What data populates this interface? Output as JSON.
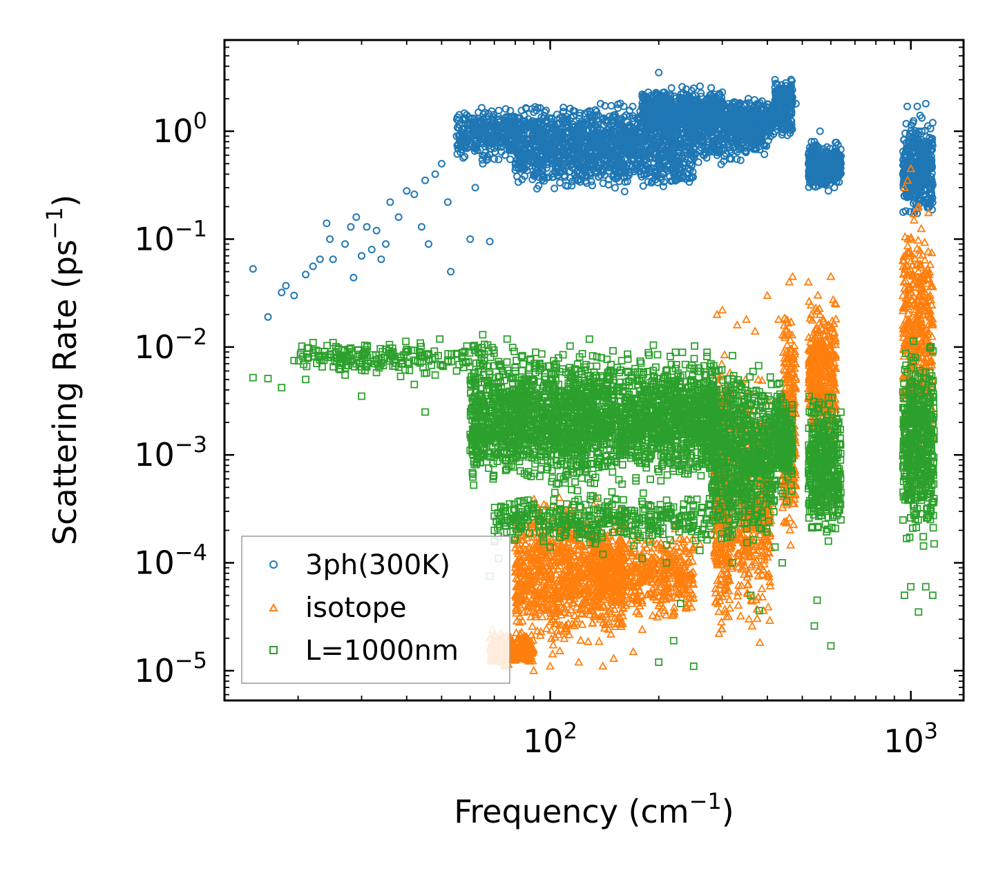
{
  "chart_data": {
    "type": "scatter",
    "xscale": "log",
    "yscale": "log",
    "xlim": [
      12.5,
      1400
    ],
    "ylim": [
      5.3e-06,
      7.0
    ],
    "xlabel": {
      "base": "Frequency (cm",
      "exponent": "−1",
      "close": ")"
    },
    "ylabel": {
      "base": "Scattering Rate (ps",
      "exponent": "−1",
      "close": ")"
    },
    "x_ticks": [
      {
        "value": 100,
        "base": "10",
        "exp": "2"
      },
      {
        "value": 1000,
        "base": "10",
        "exp": "3"
      }
    ],
    "y_ticks": [
      {
        "value": 1,
        "base": "10",
        "exp": "0"
      },
      {
        "value": 0.1,
        "base": "10",
        "exp": "−1"
      },
      {
        "value": 0.01,
        "base": "10",
        "exp": "−2"
      },
      {
        "value": 0.001,
        "base": "10",
        "exp": "−3"
      },
      {
        "value": 0.0001,
        "base": "10",
        "exp": "−4"
      },
      {
        "value": 1e-05,
        "base": "10",
        "exp": "−5"
      }
    ],
    "legend_position": "lower-left",
    "series": [
      {
        "name": "3ph(300K)",
        "marker": "circle",
        "color": "#1f77b4",
        "points": [
          [
            15,
            0.053
          ],
          [
            16.5,
            0.019
          ],
          [
            18,
            0.032
          ],
          [
            18.5,
            0.037
          ],
          [
            19.5,
            0.03
          ],
          [
            21,
            0.047
          ],
          [
            22,
            0.056
          ],
          [
            23,
            0.065
          ],
          [
            24,
            0.14
          ],
          [
            24.5,
            0.1
          ],
          [
            25,
            0.065
          ],
          [
            27,
            0.09
          ],
          [
            28,
            0.13
          ],
          [
            28.5,
            0.044
          ],
          [
            29,
            0.16
          ],
          [
            30,
            0.07
          ],
          [
            31,
            0.13
          ],
          [
            32,
            0.08
          ],
          [
            33,
            0.12
          ],
          [
            34,
            0.065
          ],
          [
            35,
            0.09
          ],
          [
            36,
            0.22
          ],
          [
            38,
            0.16
          ],
          [
            40,
            0.28
          ],
          [
            42,
            0.26
          ],
          [
            44,
            0.13
          ],
          [
            45,
            0.35
          ],
          [
            46,
            0.09
          ],
          [
            48,
            0.4
          ],
          [
            50,
            0.5
          ],
          [
            52,
            0.22
          ],
          [
            53,
            0.05
          ],
          [
            55,
            0.9
          ],
          [
            58,
            0.7
          ],
          [
            60,
            0.1
          ],
          [
            62,
            0.3
          ],
          [
            65,
            0.5
          ],
          [
            68,
            0.095
          ],
          [
            70,
            0.8
          ],
          [
            75,
            0.6
          ],
          [
            80,
            1.2
          ],
          [
            85,
            0.45
          ],
          [
            90,
            1.5
          ],
          [
            95,
            0.9
          ],
          [
            100,
            0.7
          ],
          [
            110,
            1.1
          ],
          [
            120,
            0.5
          ],
          [
            130,
            0.9
          ],
          [
            140,
            1.3
          ],
          [
            150,
            0.4
          ],
          [
            160,
            1.7
          ],
          [
            170,
            1.0
          ],
          [
            180,
            2.2
          ],
          [
            190,
            0.8
          ],
          [
            200,
            3.5
          ],
          [
            210,
            1.4
          ],
          [
            220,
            0.9
          ],
          [
            230,
            2.0
          ],
          [
            250,
            2.5
          ],
          [
            270,
            1.5
          ],
          [
            300,
            2.3
          ],
          [
            320,
            1.8
          ],
          [
            350,
            1.3
          ],
          [
            380,
            0.9
          ],
          [
            400,
            1.5
          ],
          [
            420,
            3.0
          ],
          [
            440,
            2.2
          ],
          [
            460,
            1.5
          ],
          [
            480,
            1.8
          ],
          [
            520,
            0.5
          ],
          [
            540,
            0.8
          ],
          [
            560,
            1.0
          ],
          [
            580,
            0.35
          ],
          [
            600,
            0.6
          ],
          [
            620,
            0.5
          ],
          [
            640,
            0.5
          ],
          [
            950,
            0.4
          ],
          [
            980,
            0.25
          ],
          [
            1000,
            0.6
          ],
          [
            1050,
            1.0
          ],
          [
            1100,
            1.8
          ],
          [
            1150,
            1.2
          ]
        ],
        "bands": [
          {
            "x": [
              55,
              400
            ],
            "ylog": [
              -0.35,
              0.3
            ],
            "count": 1500
          },
          {
            "x": [
              80,
              250
            ],
            "ylog": [
              -0.6,
              0.05
            ],
            "count": 700
          },
          {
            "x": [
              180,
              300
            ],
            "ylog": [
              -0.05,
              0.45
            ],
            "count": 600
          },
          {
            "x": [
              280,
              470
            ],
            "ylog": [
              -0.1,
              0.35
            ],
            "count": 400
          },
          {
            "x": [
              420,
              470
            ],
            "ylog": [
              0.15,
              0.5
            ],
            "count": 150
          },
          {
            "x": [
              520,
              640
            ],
            "ylog": [
              -0.6,
              -0.05
            ],
            "count": 400
          },
          {
            "x": [
              950,
              1150
            ],
            "ylog": [
              -0.9,
              0.25
            ],
            "count": 400
          }
        ]
      },
      {
        "name": "isotope",
        "marker": "triangle",
        "color": "#ff7f0e",
        "points": [
          [
            72,
            1.6e-05
          ],
          [
            75,
            1.1e-05
          ],
          [
            90,
            1e-05
          ],
          [
            100,
            1.1e-05
          ],
          [
            120,
            1.2e-05
          ],
          [
            140,
            1.1e-05
          ],
          [
            150,
            1.3e-05
          ],
          [
            170,
            1.5e-05
          ],
          [
            180,
            2.4e-05
          ],
          [
            200,
            4e-05
          ],
          [
            220,
            3.5e-05
          ],
          [
            240,
            0.0001
          ],
          [
            260,
            0.00015
          ],
          [
            290,
            0.02
          ],
          [
            300,
            0.022
          ],
          [
            330,
            0.016
          ],
          [
            350,
            0.018
          ],
          [
            370,
            0.014
          ],
          [
            400,
            0.03
          ],
          [
            430,
            0.018
          ],
          [
            460,
            0.04
          ],
          [
            470,
            0.045
          ],
          [
            480,
            0.005
          ],
          [
            520,
            0.04
          ],
          [
            560,
            0.02
          ],
          [
            600,
            0.045
          ],
          [
            620,
            0.025
          ],
          [
            960,
            0.3
          ],
          [
            980,
            0.35
          ],
          [
            1000,
            0.45
          ],
          [
            1020,
            0.15
          ],
          [
            1050,
            0.2
          ],
          [
            1080,
            0.035
          ],
          [
            1100,
            0.05
          ],
          [
            1140,
            0.0015
          ]
        ],
        "bands": [
          {
            "x": [
              68,
              90
            ],
            "ylog": [
              -4.98,
              -4.6
            ],
            "count": 300
          },
          {
            "x": [
              80,
              160
            ],
            "ylog": [
              -4.9,
              -3.3
            ],
            "count": 1000
          },
          {
            "x": [
              130,
              250
            ],
            "ylog": [
              -4.6,
              -3.6
            ],
            "count": 500
          },
          {
            "x": [
              285,
              320
            ],
            "ylog": [
              -4.95,
              -1.8
            ],
            "count": 400
          },
          {
            "x": [
              330,
              410
            ],
            "ylog": [
              -4.9,
              -2.0
            ],
            "count": 400
          },
          {
            "x": [
              440,
              480
            ],
            "ylog": [
              -4.0,
              -1.4
            ],
            "count": 300
          },
          {
            "x": [
              520,
              620
            ],
            "ylog": [
              -3.2,
              -1.4
            ],
            "count": 400
          },
          {
            "x": [
              950,
              1150
            ],
            "ylog": [
              -3.2,
              -0.5
            ],
            "count": 400
          }
        ]
      },
      {
        "name": "L=1000nm",
        "marker": "square",
        "color": "#2ca02c",
        "points": [
          [
            15,
            0.0052
          ],
          [
            16.5,
            0.0051
          ],
          [
            18,
            0.0042
          ],
          [
            19.5,
            0.0075
          ],
          [
            21,
            0.005
          ],
          [
            22,
            0.011
          ],
          [
            25,
            0.011
          ],
          [
            27,
            0.0055
          ],
          [
            28,
            0.0075
          ],
          [
            29,
            0.007
          ],
          [
            30,
            0.0035
          ],
          [
            33,
            0.0058
          ],
          [
            35,
            0.0095
          ],
          [
            38,
            0.0065
          ],
          [
            40,
            0.0095
          ],
          [
            42,
            0.0045
          ],
          [
            45,
            0.0025
          ],
          [
            48,
            0.0055
          ],
          [
            52,
            0.0075
          ],
          [
            55,
            0.006
          ],
          [
            60,
            0.0011
          ],
          [
            65,
            0.013
          ],
          [
            68,
            7.5e-05
          ],
          [
            70,
            0.0002
          ],
          [
            72,
            0.00011
          ],
          [
            75,
            0.0009
          ],
          [
            78,
            0.0008
          ],
          [
            80,
            0.00017
          ],
          [
            90,
            0.00035
          ],
          [
            100,
            0.00014
          ],
          [
            110,
            0.00055
          ],
          [
            140,
            0.00012
          ],
          [
            180,
            0.00011
          ],
          [
            200,
            1.2e-05
          ],
          [
            210,
            0.0001
          ],
          [
            220,
            1.9e-05
          ],
          [
            230,
            4.2e-05
          ],
          [
            250,
            1.1e-05
          ],
          [
            260,
            0.00013
          ],
          [
            300,
            0.00025
          ],
          [
            320,
            0.0001
          ],
          [
            360,
            5e-05
          ],
          [
            380,
            3.6e-05
          ],
          [
            420,
            0.00014
          ],
          [
            440,
            0.0001
          ],
          [
            540,
            2.6e-05
          ],
          [
            550,
            4.5e-05
          ],
          [
            600,
            1.7e-05
          ],
          [
            640,
            0.00025
          ],
          [
            960,
            5e-05
          ],
          [
            1000,
            6e-05
          ],
          [
            1050,
            3.5e-05
          ],
          [
            1100,
            6e-05
          ],
          [
            1150,
            5e-05
          ],
          [
            1160,
            0.00015
          ]
        ],
        "bands": [
          {
            "x": [
              20,
              70
            ],
            "ylog": [
              -2.3,
              -1.9
            ],
            "count": 200
          },
          {
            "x": [
              60,
              290
            ],
            "ylog": [
              -3.4,
              -1.9
            ],
            "count": 2600
          },
          {
            "x": [
              70,
              280
            ],
            "ylog": [
              -3.9,
              -3.3
            ],
            "count": 400
          },
          {
            "x": [
              280,
              330
            ],
            "ylog": [
              -4.0,
              -1.9
            ],
            "count": 300
          },
          {
            "x": [
              330,
              420
            ],
            "ylog": [
              -4.0,
              -2.0
            ],
            "count": 400
          },
          {
            "x": [
              420,
              470
            ],
            "ylog": [
              -3.5,
              -2.2
            ],
            "count": 200
          },
          {
            "x": [
              520,
              640
            ],
            "ylog": [
              -3.9,
              -2.3
            ],
            "count": 400
          },
          {
            "x": [
              950,
              1160
            ],
            "ylog": [
              -4.0,
              -1.8
            ],
            "count": 500
          }
        ]
      }
    ]
  }
}
